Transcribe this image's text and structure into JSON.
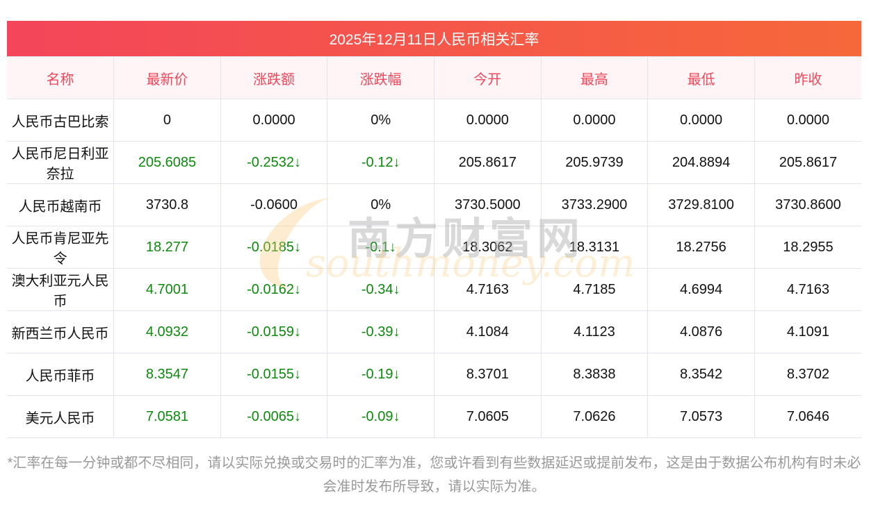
{
  "title": "2025年12月11日人民币相关汇率",
  "columns": [
    "名称",
    "最新价",
    "涨跌额",
    "涨跌幅",
    "今开",
    "最高",
    "最低",
    "昨收"
  ],
  "rows": [
    {
      "name": "人民币古巴比索",
      "latest": "0",
      "change": "0.0000",
      "pct": "0%",
      "open": "0.0000",
      "high": "0.0000",
      "low": "0.0000",
      "prev": "0.0000",
      "trend": "flat"
    },
    {
      "name": "人民币尼日利亚奈拉",
      "latest": "205.6085",
      "change": "-0.2532↓",
      "pct": "-0.12↓",
      "open": "205.8617",
      "high": "205.9739",
      "low": "204.8894",
      "prev": "205.8617",
      "trend": "down"
    },
    {
      "name": "人民币越南币",
      "latest": "3730.8",
      "change": "-0.0600",
      "pct": "0%",
      "open": "3730.5000",
      "high": "3733.2900",
      "low": "3729.8100",
      "prev": "3730.8600",
      "trend": "flat"
    },
    {
      "name": "人民币肯尼亚先令",
      "latest": "18.277",
      "change": "-0.0185↓",
      "pct": "-0.1↓",
      "open": "18.3062",
      "high": "18.3131",
      "low": "18.2756",
      "prev": "18.2955",
      "trend": "down"
    },
    {
      "name": "澳大利亚元人民币",
      "latest": "4.7001",
      "change": "-0.0162↓",
      "pct": "-0.34↓",
      "open": "4.7163",
      "high": "4.7185",
      "low": "4.6994",
      "prev": "4.7163",
      "trend": "down"
    },
    {
      "name": "新西兰币人民币",
      "latest": "4.0932",
      "change": "-0.0159↓",
      "pct": "-0.39↓",
      "open": "4.1084",
      "high": "4.1123",
      "low": "4.0876",
      "prev": "4.1091",
      "trend": "down"
    },
    {
      "name": "人民币菲币",
      "latest": "8.3547",
      "change": "-0.0155↓",
      "pct": "-0.19↓",
      "open": "8.3701",
      "high": "8.3838",
      "low": "8.3542",
      "prev": "8.3702",
      "trend": "down"
    },
    {
      "name": "美元人民币",
      "latest": "7.0581",
      "change": "-0.0065↓",
      "pct": "-0.09↓",
      "open": "7.0605",
      "high": "7.0626",
      "low": "7.0573",
      "prev": "7.0646",
      "trend": "down"
    }
  ],
  "watermark": {
    "cn": "南方财富网",
    "en": "southmoney.com"
  },
  "note": "*汇率在每一分钟或都不尽相同，请以实际兑换或交易时的汇率为准，您或许看到有些数据延迟或提前发布，这是由于数据公布机构有时未必会准时发布所导致，请以实际为准。",
  "colors": {
    "accent": "#f4455a",
    "down": "#0b8a0b",
    "header_bg": "#fff5f6"
  }
}
